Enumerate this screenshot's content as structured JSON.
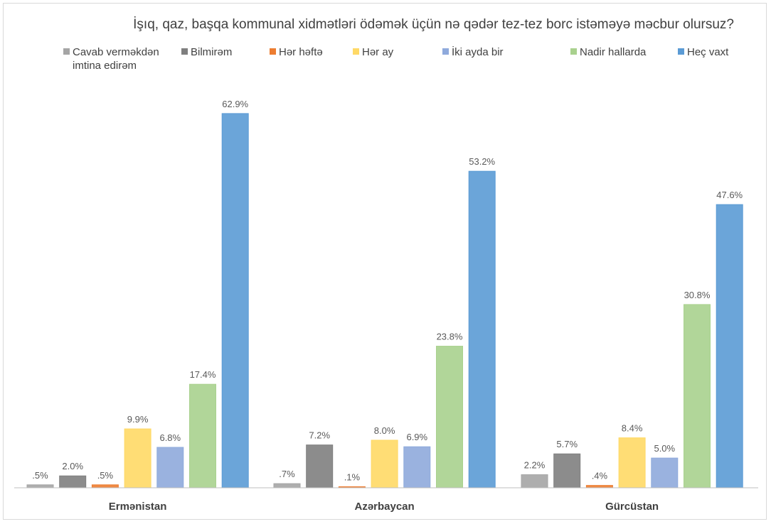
{
  "chart_data": {
    "type": "bar",
    "title": "İşıq, qaz, başqa kommunal xidmətləri ödəmək üçün nə qədər tez-tez borc istəməyə məcbur olursuz?",
    "categories": [
      "Ermənistan",
      "Azərbaycan",
      "Gürcüstan"
    ],
    "series": [
      {
        "name": "Cavab verməkdən imtina edirəm",
        "name_lines": [
          "Cavab verməkdən",
          "imtina edirəm"
        ],
        "color": "#a5a5a5",
        "values": [
          0.5,
          0.7,
          2.2
        ],
        "labels": [
          ".5%",
          ".7%",
          "2.2%"
        ]
      },
      {
        "name": "Bilmirəm",
        "name_lines": [
          "Bilmirəm"
        ],
        "color": "#7f7f7f",
        "values": [
          2.0,
          7.2,
          5.7
        ],
        "labels": [
          "2.0%",
          "7.2%",
          "5.7%"
        ]
      },
      {
        "name": "Hər həftə",
        "name_lines": [
          "Hər həftə"
        ],
        "color": "#ed7d31",
        "values": [
          0.5,
          0.1,
          0.4
        ],
        "labels": [
          ".5%",
          ".1%",
          ".4%"
        ]
      },
      {
        "name": "Hər ay",
        "name_lines": [
          "Hər ay"
        ],
        "color": "#ffd966",
        "values": [
          9.9,
          8.0,
          8.4
        ],
        "labels": [
          "9.9%",
          "8.0%",
          "8.4%"
        ]
      },
      {
        "name": "İki ayda bir",
        "name_lines": [
          "İki ayda bir"
        ],
        "color": "#8faadc",
        "values": [
          6.8,
          6.9,
          5.0
        ],
        "labels": [
          "6.8%",
          "6.9%",
          "5.0%"
        ]
      },
      {
        "name": "Nadir hallarda",
        "name_lines": [
          "Nadir hallarda"
        ],
        "color": "#a9d18e",
        "values": [
          17.4,
          23.8,
          30.8
        ],
        "labels": [
          "17.4%",
          "23.8%",
          "30.8%"
        ]
      },
      {
        "name": "Heç vaxt",
        "name_lines": [
          "Heç vaxt"
        ],
        "color": "#5b9bd5",
        "values": [
          62.9,
          53.2,
          47.6
        ],
        "labels": [
          "62.9%",
          "53.2%",
          "47.6%"
        ]
      }
    ],
    "ylim": [
      0,
      70
    ],
    "grid": false,
    "legend": "top"
  }
}
